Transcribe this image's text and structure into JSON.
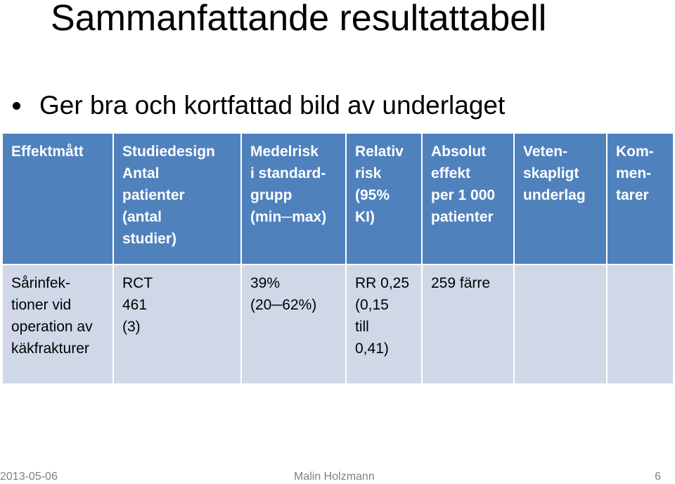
{
  "slide": {
    "title": "Sammanfattande resultattabell",
    "bullet": "Ger bra och kortfattad bild av underlaget"
  },
  "table": {
    "headers": [
      "Effektmått",
      "Studiedesign\nAntal\npatienter\n(antal\nstudier)",
      "Medelrisk\ni standard-\ngrupp\n(min─max)",
      "Relativ\nrisk\n(95%\nKI)",
      "Absolut\neffekt\nper 1 000\npatienter",
      "Veten-\nskapligt\nunderlag",
      "Kom-\nmen-\ntarer"
    ],
    "rows": [
      [
        "Sårinfek-\ntioner  vid\noperation av\nkäkfrakturer",
        "RCT\n461\n(3)",
        "39%\n(20─62%)",
        "RR 0,25\n(0,15\ntill\n0,41)",
        "259 färre",
        "",
        ""
      ]
    ]
  },
  "footer": {
    "date": "2013-05-06",
    "author": "Malin Holzmann",
    "page": "6"
  },
  "colors": {
    "header_bg": "#4f81bd",
    "cell_bg": "#d0d8e8",
    "footer_text": "#7f7f7f"
  }
}
